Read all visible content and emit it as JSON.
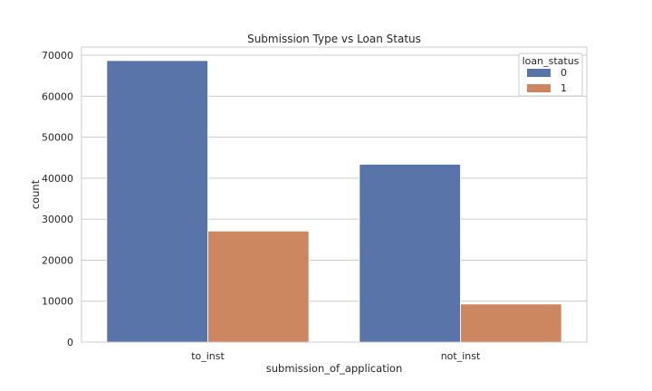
{
  "chart_data": {
    "type": "bar",
    "title": "Submission Type vs Loan Status",
    "xlabel": "submission_of_application",
    "ylabel": "count",
    "categories": [
      "to_inst",
      "not_inst"
    ],
    "series": [
      {
        "name": "0",
        "values": [
          68700,
          43400
        ],
        "color": "#5874a8"
      },
      {
        "name": "1",
        "values": [
          27100,
          9300
        ],
        "color": "#cc8660"
      }
    ],
    "ylim": [
      0,
      72000
    ],
    "yticks": [
      0,
      10000,
      20000,
      30000,
      40000,
      50000,
      60000,
      70000
    ],
    "grid": true,
    "legend": {
      "title": "loan_status",
      "placement": "top-right"
    }
  }
}
